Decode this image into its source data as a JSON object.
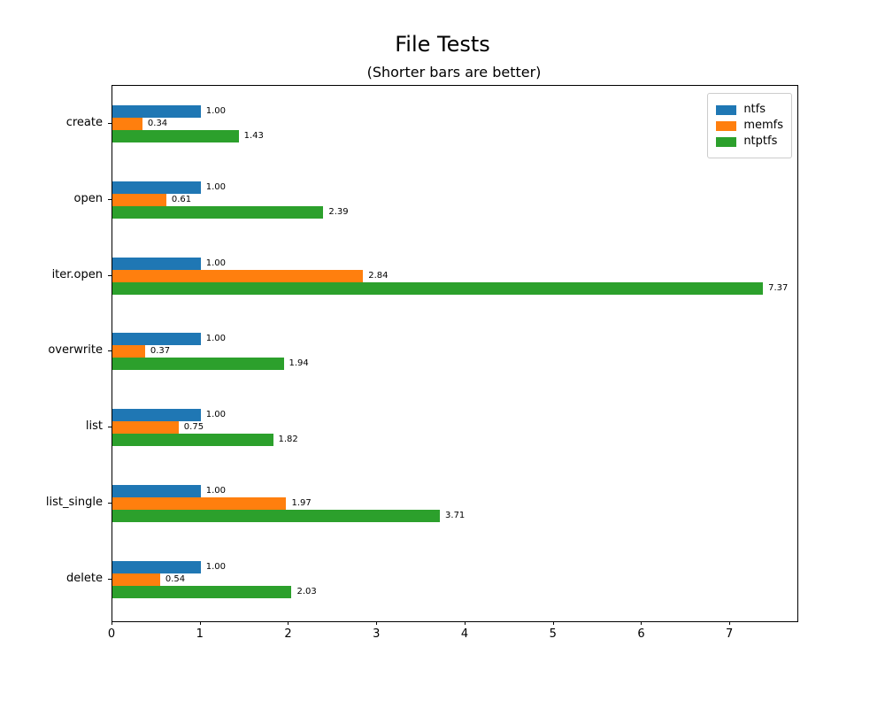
{
  "chart_data": {
    "type": "bar",
    "orientation": "horizontal",
    "title": "File Tests",
    "subtitle": "(Shorter bars are better)",
    "categories": [
      "create",
      "open",
      "iter.open",
      "overwrite",
      "list",
      "list_single",
      "delete"
    ],
    "series": [
      {
        "name": "ntfs",
        "color": "#1f77b4",
        "values": [
          1.0,
          1.0,
          1.0,
          1.0,
          1.0,
          1.0,
          1.0
        ]
      },
      {
        "name": "memfs",
        "color": "#ff7f0e",
        "values": [
          0.34,
          0.61,
          2.84,
          0.37,
          0.75,
          1.97,
          0.54
        ]
      },
      {
        "name": "ntptfs",
        "color": "#2ca02c",
        "values": [
          1.43,
          2.39,
          7.37,
          1.94,
          1.82,
          3.71,
          2.03
        ]
      }
    ],
    "value_label_decimals": 2,
    "xlim": [
      0,
      7.76
    ],
    "x_ticks": [
      0,
      1,
      2,
      3,
      4,
      5,
      6,
      7
    ],
    "xlabel": "",
    "ylabel": "",
    "grid": false,
    "legend_position": "upper-right",
    "axis_color": "#000000",
    "background_color": "#ffffff"
  }
}
